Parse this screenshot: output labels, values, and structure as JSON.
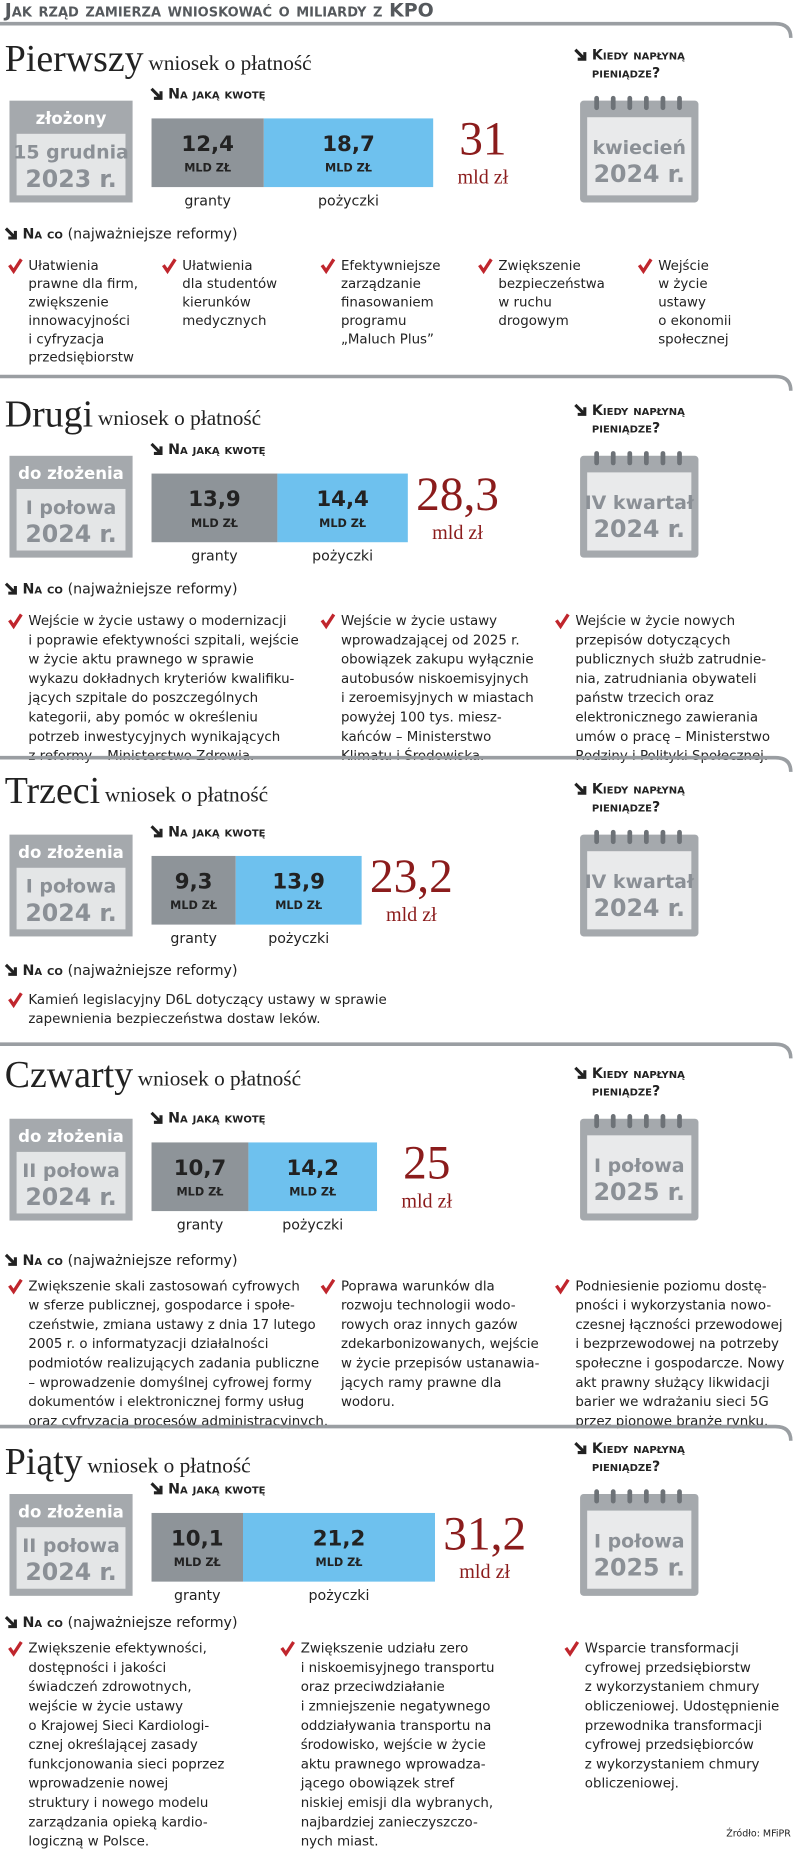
{
  "header": {
    "title": "Jak rząd zamierza wnioskować o miliardy z KPO"
  },
  "sections": [
    {
      "ordinal": "Pierwszy",
      "subtitle": "wniosek o płatność",
      "status": "złożony",
      "date": [
        "15 grudnia",
        "2023 r."
      ],
      "amount_heading": "Na jaką kwotę",
      "grants": {
        "value": 12.4,
        "label": "12,4",
        "unit": "MLD ZŁ",
        "name": "granty"
      },
      "loans": {
        "value": 18.7,
        "label": "18,7",
        "unit": "MLD ZŁ",
        "name": "pożyczki"
      },
      "total": {
        "value": 31,
        "label": "31",
        "unit": "mld zł"
      },
      "when_heading": [
        "Kiedy napłyną",
        "pieniądze?"
      ],
      "when": [
        "kwiecień",
        "2024 r."
      ],
      "reforms_heading": "Na co",
      "reforms_note": "(najważniejsze reformy)",
      "reforms": [
        [
          "Ułatwienia",
          "prawne dla firm,",
          "zwiększenie",
          "innowacyjności",
          "i cyfryzacja",
          "przedsiębiorstw"
        ],
        [
          "Ułatwienia",
          "dla studentów",
          "kierunków",
          "medycznych"
        ],
        [
          "Efektywniejsze",
          "zarządzanie",
          "finasowaniem",
          "programu",
          "„Maluch Plus”"
        ],
        [
          "Zwiększenie",
          "bezpieczeństwa",
          "w ruchu",
          "drogowym"
        ],
        [
          "Wejście",
          "w życie",
          "ustawy",
          "o ekonomii",
          "społecznej"
        ]
      ]
    },
    {
      "ordinal": "Drugi",
      "subtitle": "wniosek o płatność",
      "status": "do złożenia",
      "date": [
        "I połowa",
        "2024 r."
      ],
      "amount_heading": "Na jaką kwotę",
      "grants": {
        "value": 13.9,
        "label": "13,9",
        "unit": "MLD ZŁ",
        "name": "granty"
      },
      "loans": {
        "value": 14.4,
        "label": "14,4",
        "unit": "MLD ZŁ",
        "name": "pożyczki"
      },
      "total": {
        "value": 28.3,
        "label": "28,3",
        "unit": "mld zł"
      },
      "when_heading": [
        "Kiedy napłyną",
        "pieniądze?"
      ],
      "when": [
        "IV kwartał",
        "2024 r."
      ],
      "reforms_heading": "Na co",
      "reforms_note": "(najważniejsze reformy)",
      "reforms": [
        [
          "Wejście w życie ustawy o modernizacji",
          "i poprawie efektywności szpitali, wejście",
          "w życie aktu prawnego w sprawie",
          "wykazu dokładnych kryteriów kwalifiku-",
          "jących szpitale do poszczególnych",
          "kategorii, aby pomóc w określeniu",
          "potrzeb inwestycyjnych wynikających",
          "z reformy – Ministerstwo Zdrowia."
        ],
        [
          "Wejście w życie ustawy",
          "wprowadzającej od 2025 r.",
          "obowiązek zakupu wyłącznie",
          "autobusów niskoemisyjnych",
          "i zeroemisyjnych w miastach",
          "powyżej 100 tys. miesz-",
          "kańców – Ministerstwo",
          "Klimatu i Środowiska."
        ],
        [
          "Wejście w życie nowych",
          "przepisów dotyczących",
          "publicznych służb zatrudnie-",
          "nia, zatrudniania obywateli",
          "państw trzecich oraz",
          "elektronicznego zawierania",
          "umów o pracę – Ministerstwo",
          "Rodziny i Polityki Społecznej."
        ]
      ]
    },
    {
      "ordinal": "Trzeci",
      "subtitle": "wniosek o płatność",
      "status": "do złożenia",
      "date": [
        "I połowa",
        "2024 r."
      ],
      "amount_heading": "Na jaką kwotę",
      "grants": {
        "value": 9.3,
        "label": "9,3",
        "unit": "MLD ZŁ",
        "name": "granty"
      },
      "loans": {
        "value": 13.9,
        "label": "13,9",
        "unit": "MLD ZŁ",
        "name": "pożyczki"
      },
      "total": {
        "value": 23.2,
        "label": "23,2",
        "unit": "mld zł"
      },
      "when_heading": [
        "Kiedy napłyną",
        "pieniądze?"
      ],
      "when": [
        "IV kwartał",
        "2024 r."
      ],
      "reforms_heading": "Na co",
      "reforms_note": "(najważniejsze reformy)",
      "reforms": [
        [
          "Kamień legislacyjny D6L dotyczący ustawy w sprawie",
          "zapewnienia bezpieczeństwa dostaw leków."
        ]
      ]
    },
    {
      "ordinal": "Czwarty",
      "subtitle": "wniosek o płatność",
      "status": "do złożenia",
      "date": [
        "II połowa",
        "2024 r."
      ],
      "amount_heading": "Na jaką kwotę",
      "grants": {
        "value": 10.7,
        "label": "10,7",
        "unit": "MLD ZŁ",
        "name": "granty"
      },
      "loans": {
        "value": 14.2,
        "label": "14,2",
        "unit": "MLD ZŁ",
        "name": "pożyczki"
      },
      "total": {
        "value": 25,
        "label": "25",
        "unit": "mld zł"
      },
      "when_heading": [
        "Kiedy napłyną",
        "pieniądze?"
      ],
      "when": [
        "I połowa",
        "2025 r."
      ],
      "reforms_heading": "Na co",
      "reforms_note": "(najważniejsze reformy)",
      "reforms": [
        [
          "Zwiększenie skali zastosowań cyfrowych",
          "w sferze publicznej, gospodarce i społe-",
          "czeństwie, zmiana ustawy z dnia 17 lutego",
          "2005 r. o informatyzacji działalności",
          "podmiotów realizujących zadania publiczne",
          "– wprowadzenie domyślnej cyfrowej formy",
          "dokumentów i elektronicznej formy usług",
          "oraz cyfryzacja procesów administracyjnych."
        ],
        [
          "Poprawa warunków dla",
          "rozwoju technologii wodo-",
          "rowych oraz innych gazów",
          "zdekarbonizowanych, wejście",
          "w życie przepisów ustanawia-",
          "jących ramy prawne dla",
          "wodoru."
        ],
        [
          "Podniesienie poziomu dostę-",
          "pności i wykorzystania nowo-",
          "czesnej łączności przewodowej",
          "i bezprzewodowej na potrzeby",
          "społeczne i gospodarcze. Nowy",
          "akt prawny służący likwidacji",
          "barier we wdrażaniu sieci 5G",
          "przez pionowe branże rynku."
        ]
      ]
    },
    {
      "ordinal": "Piąty",
      "subtitle": "wniosek o płatność",
      "status": "do złożenia",
      "date": [
        "II połowa",
        "2024 r."
      ],
      "amount_heading": "Na jaką kwotę",
      "grants": {
        "value": 10.1,
        "label": "10,1",
        "unit": "MLD ZŁ",
        "name": "granty"
      },
      "loans": {
        "value": 21.2,
        "label": "21,2",
        "unit": "MLD ZŁ",
        "name": "pożyczki"
      },
      "total": {
        "value": 31.2,
        "label": "31,2",
        "unit": "mld zł"
      },
      "when_heading": [
        "Kiedy napłyną",
        "pieniądze?"
      ],
      "when": [
        "I połowa",
        "2025 r."
      ],
      "reforms_heading": "Na co",
      "reforms_note": "(najważniejsze reformy)",
      "reforms": [
        [
          "Zwiększenie efektywności,",
          "dostępności i jakości",
          "świadczeń zdrowotnych,",
          "wejście w życie ustawy",
          "o Krajowej Sieci Kardiologi-",
          "cznej określającej zasady",
          "funkcjonowania sieci poprzez",
          "wprowadzenie nowej",
          "struktury i nowego modelu",
          "zarządzania opieką kardio-",
          "logiczną w Polsce."
        ],
        [
          "Zwiększenie udziału zero",
          "i niskoemisyjnego transportu",
          "oraz przeciwdziałanie",
          "i zmniejszenie negatywnego",
          "oddziaływania transportu na",
          "środowisko, wejście w życie",
          "aktu prawnego wprowadza-",
          "jącego obowiązek stref",
          "niskiej emisji dla wybranych,",
          "najbardziej zanieczyszczo-",
          "nych miast."
        ],
        [
          "Wsparcie transformacji",
          "cyfrowej przedsiębiorstw",
          "z wykorzystaniem chmury",
          "obliczeniowej. Udostępnienie",
          "przewodnika transformacji",
          "cyfrowej przedsiębiorców",
          "z wykorzystaniem chmury",
          "obliczeniowej."
        ]
      ]
    }
  ],
  "source": "Źródło: MFiPR"
}
